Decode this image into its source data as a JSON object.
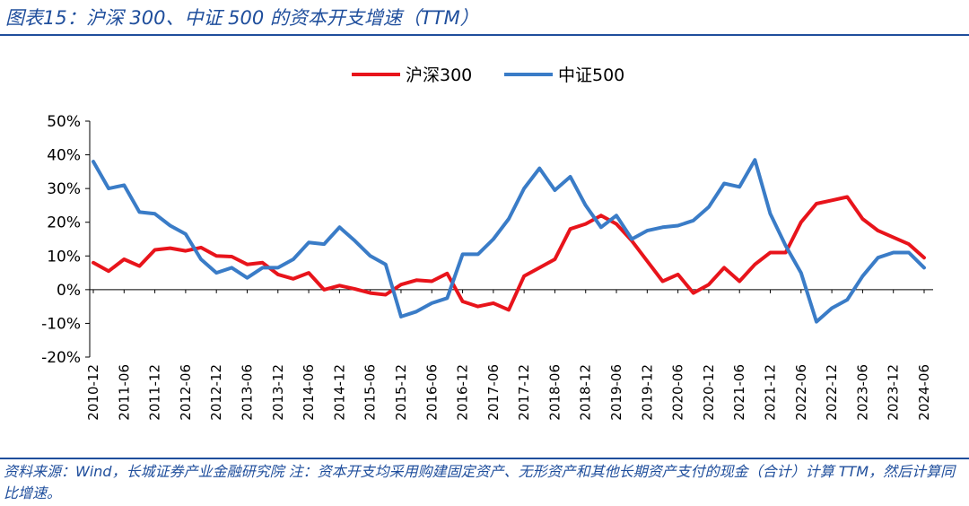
{
  "title": "图表15：沪深 300、中证 500 的资本开支增速（TTM）",
  "footer": "资料来源：Wind，长城证券产业金融研究院 注：资本开支均采用购建固定资产、无形资产和其他长期资产支付的现金（合计）计算 TTM，然后计算同比增速。",
  "chart_data": {
    "type": "line",
    "legend_position": "top-center",
    "grid": false,
    "ylim": [
      -20,
      50
    ],
    "y_ticks": [
      "-20%",
      "-10%",
      "0%",
      "10%",
      "20%",
      "30%",
      "40%",
      "50%"
    ],
    "x_ticks": [
      "2010-12",
      "2011-06",
      "2011-12",
      "2012-06",
      "2012-12",
      "2013-06",
      "2013-12",
      "2014-06",
      "2014-12",
      "2015-06",
      "2015-12",
      "2016-06",
      "2016-12",
      "2017-06",
      "2017-12",
      "2018-06",
      "2018-12",
      "2019-06",
      "2019-12",
      "2020-06",
      "2020-12",
      "2021-06",
      "2021-12",
      "2022-06",
      "2022-12",
      "2023-06",
      "2023-12",
      "2024-06"
    ],
    "x": [
      "2010-12",
      "2011-03",
      "2011-06",
      "2011-09",
      "2011-12",
      "2012-03",
      "2012-06",
      "2012-09",
      "2012-12",
      "2013-03",
      "2013-06",
      "2013-09",
      "2013-12",
      "2014-03",
      "2014-06",
      "2014-09",
      "2014-12",
      "2015-03",
      "2015-06",
      "2015-09",
      "2015-12",
      "2016-03",
      "2016-06",
      "2016-09",
      "2016-12",
      "2017-03",
      "2017-06",
      "2017-09",
      "2017-12",
      "2018-03",
      "2018-06",
      "2018-09",
      "2018-12",
      "2019-03",
      "2019-06",
      "2019-09",
      "2019-12",
      "2020-03",
      "2020-06",
      "2020-09",
      "2020-12",
      "2021-03",
      "2021-06",
      "2021-09",
      "2021-12",
      "2022-03",
      "2022-06",
      "2022-09",
      "2022-12",
      "2023-03",
      "2023-06",
      "2023-09",
      "2023-12",
      "2024-03",
      "2024-06"
    ],
    "series": [
      {
        "name": "沪深300",
        "color": "#e8141b",
        "values": [
          8.0,
          5.5,
          9.0,
          7.0,
          11.8,
          12.3,
          11.5,
          12.5,
          10.0,
          9.8,
          7.5,
          8.0,
          4.5,
          3.2,
          5.0,
          0.0,
          1.2,
          0.2,
          -1.0,
          -1.5,
          1.5,
          2.8,
          2.5,
          4.8,
          -3.5,
          -5.0,
          -4.0,
          -6.0,
          4.0,
          6.5,
          9.0,
          18.0,
          19.5,
          22.0,
          19.5,
          14.5,
          8.5,
          2.5,
          4.5,
          -1.0,
          1.5,
          6.5,
          2.5,
          7.5,
          11.0,
          11.0,
          20.0,
          25.5,
          26.5,
          27.5,
          21.0,
          17.5,
          15.5,
          13.5,
          9.5
        ]
      },
      {
        "name": "中证500",
        "color": "#3a7cc7",
        "values": [
          38.0,
          30.0,
          31.0,
          23.0,
          22.5,
          19.0,
          16.5,
          9.0,
          5.0,
          6.5,
          3.5,
          6.5,
          6.5,
          9.0,
          14.0,
          13.5,
          18.5,
          14.5,
          10.0,
          7.5,
          -8.0,
          -6.5,
          -4.0,
          -2.5,
          10.5,
          10.5,
          15.0,
          21.0,
          30.0,
          36.0,
          29.5,
          33.5,
          25.0,
          18.5,
          22.0,
          15.0,
          17.5,
          18.5,
          19.0,
          20.5,
          24.5,
          31.5,
          30.5,
          38.5,
          22.5,
          13.0,
          5.0,
          -9.5,
          -5.5,
          -3.0,
          4.0,
          9.5,
          11.0,
          11.0,
          6.5
        ]
      }
    ]
  }
}
